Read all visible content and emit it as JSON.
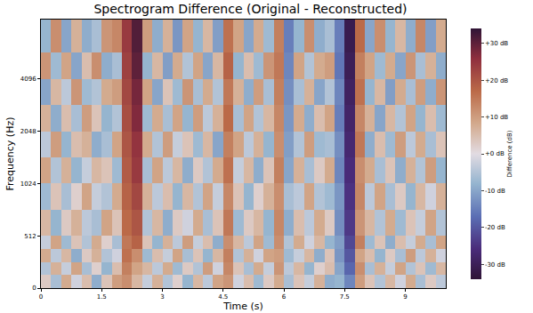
{
  "chart_data": {
    "type": "heatmap",
    "title": "Spectrogram Difference (Original - Reconstructed)",
    "x_label": "Time (s)",
    "y_label": "Frequency (Hz)",
    "x_edges": [
      0,
      0.25,
      0.5,
      0.75,
      1,
      1.25,
      1.5,
      1.75,
      2,
      2.25,
      2.5,
      2.75,
      3,
      3.25,
      3.5,
      3.75,
      4,
      4.25,
      4.5,
      4.75,
      5,
      5.25,
      5.5,
      5.75,
      6,
      6.25,
      6.5,
      6.75,
      7,
      7.25,
      7.5,
      7.75,
      8,
      8.25,
      8.5,
      8.75,
      9,
      9.25,
      9.5,
      9.75,
      10
    ],
    "y_edges": [
      0,
      128,
      256,
      384,
      512,
      724,
      1024,
      1448,
      2048,
      2896,
      4096,
      5793,
      9000
    ],
    "z": [
      [
        3,
        -6,
        8,
        -2,
        5,
        -9,
        4,
        10,
        12,
        6,
        -3,
        7,
        -5,
        2,
        -8,
        6,
        -4,
        9,
        11,
        -2,
        5,
        -7,
        3,
        8,
        -6,
        4,
        -3,
        7,
        -9,
        -8,
        -14,
        10,
        4,
        -5,
        6,
        -2,
        8,
        -6,
        3,
        -4
      ],
      [
        -5,
        7,
        -3,
        9,
        -6,
        2,
        -8,
        5,
        14,
        9,
        6,
        -4,
        8,
        -7,
        3,
        -5,
        10,
        -2,
        13,
        4,
        -6,
        8,
        -3,
        11,
        -4,
        6,
        -8,
        2,
        5,
        -10,
        -18,
        12,
        -6,
        7,
        -3,
        9,
        -5,
        4,
        -7,
        6
      ],
      [
        8,
        -4,
        6,
        -9,
        3,
        7,
        -5,
        -2,
        16,
        12,
        -7,
        5,
        -3,
        9,
        -6,
        4,
        -8,
        6,
        14,
        -5,
        7,
        -2,
        9,
        10,
        -7,
        -3,
        6,
        -9,
        4,
        -12,
        -20,
        9,
        5,
        -8,
        3,
        -6,
        10,
        -4,
        7,
        -2
      ],
      [
        -3,
        9,
        -7,
        4,
        -5,
        8,
        2,
        -6,
        15,
        18,
        4,
        -8,
        7,
        -4,
        10,
        -3,
        5,
        -9,
        12,
        6,
        -4,
        9,
        -7,
        12,
        -5,
        8,
        -2,
        6,
        -8,
        -11,
        -22,
        14,
        -7,
        4,
        -9,
        5,
        -3,
        8,
        -6,
        9
      ],
      [
        6,
        -8,
        3,
        7,
        -4,
        -6,
        9,
        4,
        17,
        20,
        -5,
        6,
        -9,
        3,
        -2,
        8,
        -6,
        4,
        15,
        -7,
        3,
        6,
        -8,
        13,
        -9,
        5,
        -4,
        8,
        3,
        -13,
        -24,
        11,
        6,
        -5,
        8,
        -7,
        4,
        -3,
        9,
        -5
      ],
      [
        -7,
        4,
        -6,
        2,
        9,
        -3,
        -5,
        8,
        18,
        22,
        7,
        -4,
        5,
        -8,
        6,
        -5,
        9,
        -3,
        13,
        4,
        -8,
        2,
        7,
        12,
        -6,
        -4,
        9,
        -5,
        -7,
        -12,
        -25,
        13,
        -4,
        9,
        -6,
        3,
        -8,
        6,
        -2,
        7
      ],
      [
        9,
        -5,
        7,
        -8,
        -3,
        6,
        4,
        -7,
        19,
        24,
        -6,
        9,
        -4,
        6,
        -9,
        3,
        -5,
        8,
        16,
        -3,
        6,
        -9,
        4,
        14,
        -10,
        7,
        -6,
        3,
        8,
        -14,
        -26,
        12,
        8,
        -6,
        4,
        -9,
        7,
        -5,
        10,
        -8
      ],
      [
        -4,
        10,
        -8,
        5,
        7,
        -9,
        -6,
        9,
        20,
        25,
        8,
        -5,
        10,
        -3,
        4,
        -7,
        6,
        -10,
        14,
        9,
        -4,
        7,
        -8,
        12,
        -11,
        -5,
        10,
        -7,
        -6,
        -13,
        -27,
        15,
        -9,
        5,
        -7,
        10,
        -4,
        8,
        -6,
        4
      ],
      [
        7,
        -9,
        5,
        -6,
        10,
        4,
        -8,
        -5,
        21,
        27,
        -7,
        8,
        -6,
        9,
        -8,
        10,
        -4,
        7,
        17,
        -6,
        9,
        -5,
        6,
        13,
        -12,
        8,
        -9,
        5,
        9,
        -15,
        -28,
        13,
        7,
        -10,
        6,
        -5,
        9,
        -8,
        5,
        -7
      ],
      [
        -10,
        6,
        -4,
        11,
        -7,
        -5,
        8,
        10,
        22,
        28,
        9,
        -10,
        4,
        -7,
        11,
        -6,
        8,
        -5,
        15,
        7,
        -9,
        10,
        -6,
        14,
        -13,
        -6,
        7,
        -10,
        -5,
        -14,
        -29,
        16,
        -8,
        6,
        -11,
        8,
        -6,
        10,
        -9,
        11
      ],
      [
        11,
        -7,
        9,
        -10,
        5,
        12,
        -9,
        -6,
        23,
        30,
        -8,
        6,
        -11,
        8,
        -5,
        9,
        -10,
        6,
        18,
        -8,
        5,
        -7,
        11,
        15,
        -14,
        9,
        -5,
        8,
        10,
        -16,
        -30,
        14,
        9,
        -7,
        8,
        -10,
        11,
        -6,
        7,
        -9
      ],
      [
        -8,
        12,
        -10,
        7,
        -9,
        -6,
        11,
        13,
        24,
        31,
        10,
        -9,
        7,
        -12,
        9,
        -8,
        6,
        -11,
        16,
        9,
        -10,
        8,
        -7,
        14,
        -15,
        -8,
        12,
        -9,
        -6,
        -15,
        -31,
        17,
        -10,
        12,
        -8,
        6,
        -9,
        13,
        -11,
        8
      ]
    ],
    "xlim": [
      0,
      10
    ],
    "ylim": [
      0,
      9000
    ],
    "xticks": [
      0,
      1.5,
      3,
      4.5,
      6,
      7.5,
      9
    ],
    "yticks": [
      0,
      512,
      1024,
      2048,
      4096
    ],
    "log": "y",
    "grid": false,
    "colorbar": {
      "title": "Difference (dB)",
      "range": [
        -34,
        34
      ],
      "ticks": [
        {
          "value": -30,
          "label": "-30 dB"
        },
        {
          "value": -20,
          "label": "-20 dB"
        },
        {
          "value": -10,
          "label": "-10 dB"
        },
        {
          "value": 0,
          "label": "+0 dB"
        },
        {
          "value": 10,
          "label": "+10 dB"
        },
        {
          "value": 20,
          "label": "+20 dB"
        },
        {
          "value": 30,
          "label": "+30 dB"
        }
      ]
    }
  }
}
